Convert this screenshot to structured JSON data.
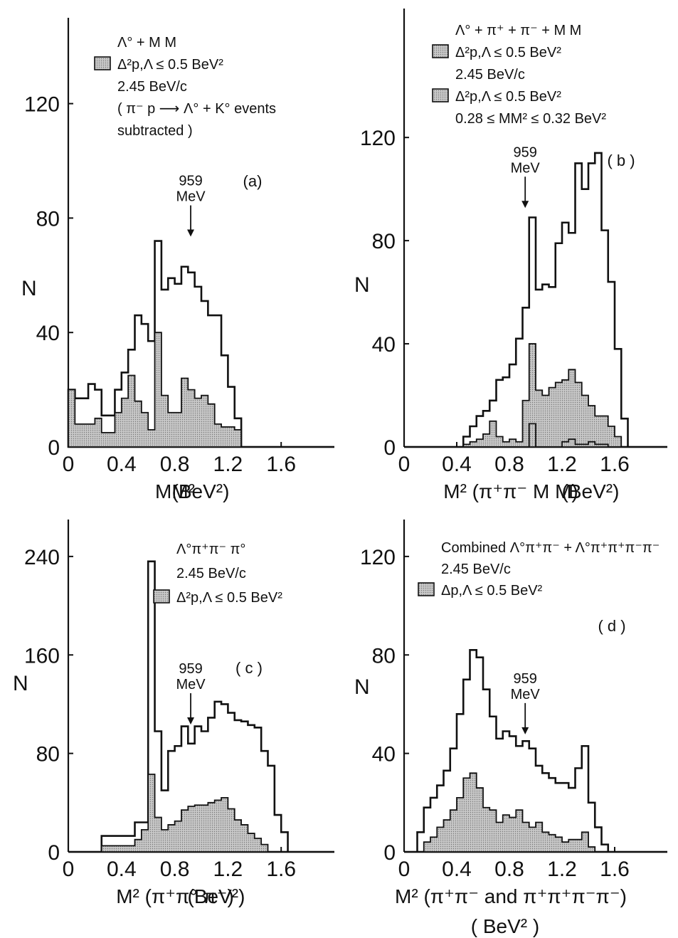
{
  "page": {
    "background": "#ffffff",
    "ink": "#111111",
    "shade": "#c8c8c8"
  },
  "chart_data": [
    {
      "id": "a",
      "type": "histogram",
      "panel_label": "(a)",
      "ylabel": "N",
      "xlabel_main": "MM²",
      "xlabel_unit": "(BeV²)",
      "xlim": [
        0,
        2.0
      ],
      "ylim": [
        0,
        150
      ],
      "xticks": [
        0,
        0.4,
        0.8,
        1.2,
        1.6
      ],
      "xtick_labels": [
        "0",
        "0.4",
        "0.8",
        "1.2",
        "1.6"
      ],
      "yticks": [
        0,
        40,
        80,
        120
      ],
      "ytick_labels": [
        "0",
        "40",
        "80",
        "120"
      ],
      "bin_width": 0.05,
      "bins_start": 0,
      "series": [
        {
          "values": [
            20,
            17,
            17,
            22,
            20,
            11,
            11,
            20,
            26,
            34,
            46,
            43,
            37,
            72,
            55,
            59,
            57,
            63,
            61,
            56,
            51,
            46,
            46,
            32,
            21,
            10,
            0,
            0,
            0,
            0,
            0,
            0,
            0,
            0,
            0,
            0,
            0,
            0,
            0,
            0
          ]
        },
        {
          "values": [
            20,
            8,
            8,
            8,
            10,
            5,
            5,
            12,
            17,
            25,
            16,
            12,
            6,
            40,
            18,
            12,
            12,
            24,
            20,
            17,
            18,
            15,
            8,
            7,
            7,
            6,
            0,
            0,
            0,
            0,
            0,
            0,
            0,
            0,
            0,
            0,
            0,
            0,
            0,
            0
          ]
        }
      ],
      "legend_lines": [
        "Λ° + M M",
        "Δ²p,Λ ≤ 0.5 BeV²",
        "2.45 BeV/c",
        "( π⁻ p ⟶ Λ° + K° events",
        "subtracted )"
      ],
      "annotation": {
        "text_line1": "959",
        "text_line2": "MeV",
        "x": 0.92,
        "y": 72
      }
    },
    {
      "id": "b",
      "type": "histogram",
      "panel_label": "( b )",
      "ylabel": "N",
      "xlabel_main": "M² (π⁺π⁻ M M)",
      "xlabel_unit": "(BeV²)",
      "xlim": [
        0,
        2.0
      ],
      "ylim": [
        0,
        170
      ],
      "xticks": [
        0,
        0.4,
        0.8,
        1.2,
        1.6
      ],
      "xtick_labels": [
        "0",
        "0.4",
        "0.8",
        "1.2",
        "1.6"
      ],
      "yticks": [
        0,
        40,
        80,
        120
      ],
      "ytick_labels": [
        "0",
        "40",
        "80",
        "120"
      ],
      "bin_width": 0.05,
      "bins_start": 0,
      "series": [
        {
          "values": [
            0,
            0,
            0,
            0,
            0,
            0,
            0,
            0,
            0,
            4,
            8,
            12,
            14,
            18,
            26,
            27,
            32,
            42,
            54,
            89,
            61,
            63,
            62,
            79,
            87,
            83,
            110,
            100,
            110,
            114,
            84,
            64,
            38,
            11,
            0,
            0,
            0,
            0,
            0,
            0
          ]
        },
        {
          "values": [
            0,
            0,
            0,
            0,
            0,
            0,
            0,
            0,
            0,
            1,
            2,
            3,
            5,
            10,
            4,
            2,
            3,
            2,
            18,
            40,
            22,
            20,
            23,
            25,
            26,
            30,
            25,
            20,
            16,
            12,
            12,
            8,
            4,
            0,
            0,
            0,
            0,
            0,
            0,
            0
          ]
        },
        {
          "values": [
            0,
            0,
            0,
            0,
            0,
            0,
            0,
            0,
            0,
            0,
            0,
            0,
            0,
            0,
            0,
            0,
            0,
            0,
            0,
            9,
            0,
            0,
            0,
            0,
            2,
            3,
            1,
            1,
            2,
            1,
            1,
            0,
            0,
            0,
            0,
            0,
            0,
            0,
            0,
            0
          ]
        }
      ],
      "legend_lines": [
        "Λ° + π⁺ + π⁻ + M M",
        "Δ²p,Λ ≤ 0.5 BeV²",
        "2.45 BeV/c",
        "Δ²p,Λ ≤ 0.5 BeV²",
        "0.28 ≤ MM² ≤ 0.32 BeV²"
      ],
      "annotation": {
        "text_line1": "959",
        "text_line2": "MeV",
        "x": 0.92,
        "y": 91
      }
    },
    {
      "id": "c",
      "type": "histogram",
      "panel_label": "( c )",
      "ylabel": "N",
      "xlabel_main": "M² (π⁺π° π⁻)",
      "xlabel_unit": "(BeV²)",
      "xlim": [
        0,
        2.0
      ],
      "ylim": [
        0,
        270
      ],
      "xticks": [
        0,
        0.4,
        0.8,
        1.2,
        1.6
      ],
      "xtick_labels": [
        "0",
        "0.4",
        "0.8",
        "1.2",
        "1.6"
      ],
      "yticks": [
        0,
        80,
        160,
        240
      ],
      "ytick_labels": [
        "0",
        "80",
        "160",
        "240"
      ],
      "bin_width": 0.05,
      "bins_start": 0,
      "series": [
        {
          "values": [
            0,
            0,
            0,
            0,
            0,
            13,
            13,
            13,
            13,
            13,
            24,
            24,
            236,
            98,
            50,
            82,
            86,
            102,
            88,
            102,
            98,
            109,
            122,
            120,
            113,
            107,
            106,
            103,
            101,
            82,
            70,
            30,
            16,
            0,
            0,
            0,
            0,
            0,
            0,
            0
          ]
        },
        {
          "values": [
            0,
            0,
            0,
            0,
            0,
            5,
            5,
            5,
            5,
            5,
            10,
            18,
            63,
            28,
            18,
            22,
            25,
            34,
            37,
            38,
            38,
            40,
            42,
            44,
            35,
            26,
            22,
            15,
            11,
            6,
            0,
            0,
            0,
            0,
            0,
            0,
            0,
            0,
            0,
            0
          ]
        }
      ],
      "legend_lines": [
        "Λ°π⁺π⁻ π°",
        "2.45 BeV/c",
        "Δ²p,Λ ≤ 0.5 BeV²"
      ],
      "annotation": {
        "text_line1": "959",
        "text_line2": "MeV",
        "x": 0.92,
        "y": 100
      }
    },
    {
      "id": "d",
      "type": "histogram",
      "panel_label": "( d )",
      "ylabel": "N",
      "xlabel_main": "M² (π⁺π⁻ and π⁺π⁺π⁻π⁻)",
      "xlabel_unit": "( BeV² )",
      "xlim": [
        0,
        2.0
      ],
      "ylim": [
        0,
        135
      ],
      "xticks": [
        0,
        0.4,
        0.8,
        1.2,
        1.6
      ],
      "xtick_labels": [
        "0",
        "0.4",
        "0.8",
        "1.2",
        "1.6"
      ],
      "yticks": [
        0,
        40,
        80,
        120
      ],
      "ytick_labels": [
        "0",
        "40",
        "80",
        "120"
      ],
      "bin_width": 0.05,
      "bins_start": 0,
      "series": [
        {
          "values": [
            0,
            0,
            8,
            18,
            22,
            27,
            33,
            42,
            56,
            70,
            82,
            79,
            66,
            55,
            46,
            49,
            47,
            43,
            45,
            42,
            35,
            32,
            30,
            28,
            28,
            26,
            34,
            43,
            20,
            10,
            3,
            0,
            0,
            0,
            0,
            0,
            0,
            0,
            0,
            0
          ]
        },
        {
          "values": [
            0,
            0,
            0,
            4,
            6,
            10,
            13,
            17,
            22,
            30,
            32,
            26,
            18,
            17,
            12,
            15,
            14,
            17,
            12,
            10,
            12,
            8,
            7,
            6,
            4,
            5,
            5,
            8,
            2,
            0,
            0,
            0,
            0,
            0,
            0,
            0,
            0,
            0,
            0,
            0
          ]
        }
      ],
      "legend_lines": [
        "Combined Λ°π⁺π⁻ + Λ°π⁺π⁺π⁻π⁻",
        "2.45 BeV/c",
        "Δp,Λ ≤ 0.5 BeV²"
      ],
      "annotation": {
        "text_line1": "959",
        "text_line2": "MeV",
        "x": 0.92,
        "y": 46
      }
    }
  ]
}
